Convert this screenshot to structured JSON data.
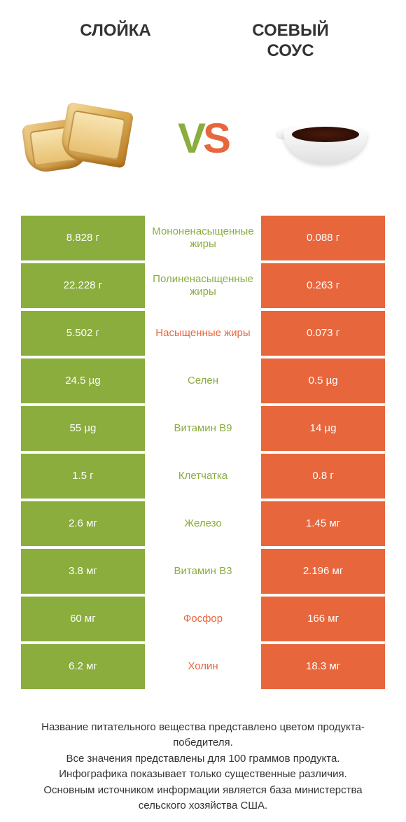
{
  "colors": {
    "green": "#8aad3e",
    "orange": "#e8663c",
    "white": "#ffffff",
    "text": "#333333"
  },
  "header": {
    "left": "СЛОЙКА",
    "right": "СОЕВЫЙ\nСОУС"
  },
  "vs": {
    "v": "V",
    "s": "S"
  },
  "rows": [
    {
      "left": "8.828 г",
      "label": "Мононенасыщенные жиры",
      "right": "0.088 г",
      "winner": "left"
    },
    {
      "left": "22.228 г",
      "label": "Полиненасыщенные жиры",
      "right": "0.263 г",
      "winner": "left"
    },
    {
      "left": "5.502 г",
      "label": "Насыщенные жиры",
      "right": "0.073 г",
      "winner": "right"
    },
    {
      "left": "24.5 µg",
      "label": "Селен",
      "right": "0.5 µg",
      "winner": "left"
    },
    {
      "left": "55 µg",
      "label": "Витамин B9",
      "right": "14 µg",
      "winner": "left"
    },
    {
      "left": "1.5 г",
      "label": "Клетчатка",
      "right": "0.8 г",
      "winner": "left"
    },
    {
      "left": "2.6 мг",
      "label": "Железо",
      "right": "1.45 мг",
      "winner": "left"
    },
    {
      "left": "3.8 мг",
      "label": "Витамин B3",
      "right": "2.196 мг",
      "winner": "left"
    },
    {
      "left": "60 мг",
      "label": "Фосфор",
      "right": "166 мг",
      "winner": "right"
    },
    {
      "left": "6.2 мг",
      "label": "Холин",
      "right": "18.3 мг",
      "winner": "right"
    }
  ],
  "footer": [
    "Название питательного вещества представлено цветом продукта-победителя.",
    "Все значения представлены для 100 граммов продукта.",
    "Инфографика показывает только существенные различия.",
    "Основным источником информации является база министерства сельского хозяйства США."
  ]
}
